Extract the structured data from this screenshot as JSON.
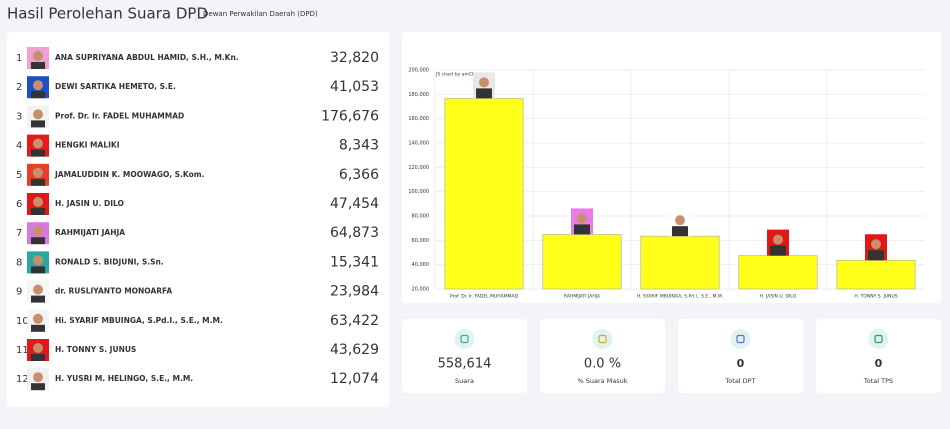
{
  "header": {
    "title": "Hasil Perolehan Suara DPD",
    "subtitle": "Dewan Perwakilan Daerah (DPD)"
  },
  "candidates": [
    {
      "no": "1",
      "name": "ANA SUPRIYANA ABDUL HAMID, S.H., M.Kn.",
      "votes": "32,820"
    },
    {
      "no": "2",
      "name": "DEWI SARTIKA HEMETO, S.E.",
      "votes": "41,053"
    },
    {
      "no": "3",
      "name": "Prof. Dr. Ir. FADEL MUHAMMAD",
      "votes": "176,676"
    },
    {
      "no": "4",
      "name": "HENGKI MALIKI",
      "votes": "8,343"
    },
    {
      "no": "5",
      "name": "JAMALUDDIN K. MOOWAGO, S.Kom.",
      "votes": "6,366"
    },
    {
      "no": "6",
      "name": "H. JASIN U. DILO",
      "votes": "47,454"
    },
    {
      "no": "7",
      "name": "RAHMIJATI JAHJA",
      "votes": "64,873"
    },
    {
      "no": "8",
      "name": "RONALD S. BIDJUNI, S.Sn.",
      "votes": "15,341"
    },
    {
      "no": "9",
      "name": "dr. RUSLIYANTO MONOARFA",
      "votes": "23,984"
    },
    {
      "no": "10",
      "name": "Hi. SYARIF MBUINGA, S.Pd.I., S.E., M.M.",
      "votes": "63,422"
    },
    {
      "no": "11",
      "name": "H. TONNY S. JUNUS",
      "votes": "43,629"
    },
    {
      "no": "12",
      "name": "H. YUSRI M. HELINGO, S.E., M.M.",
      "votes": "12,074"
    }
  ],
  "chart_data": {
    "type": "bar",
    "watermark": "JS chart by amCharts",
    "categories": [
      "Prof. Dr. Ir. FADEL MUHAMMAD",
      "RAHMIJATI JAHJA",
      "H. SYARIF MBUINGA, S.Pd.I., S.E., M.M.",
      "H. JASIN U. DILO",
      "H. TONNY S. JUNUS"
    ],
    "values": [
      176676,
      64873,
      63422,
      47454,
      43629
    ],
    "color": "#ffff1a",
    "ylim": [
      20000,
      200000
    ],
    "yticks": [
      {
        "value": 20000,
        "label": "20,000"
      },
      {
        "value": 40000,
        "label": "40,000"
      },
      {
        "value": 60000,
        "label": "60,000"
      },
      {
        "value": 80000,
        "label": "80,000"
      },
      {
        "value": 100000,
        "label": "100,000"
      },
      {
        "value": 120000,
        "label": "120,000"
      },
      {
        "value": 140000,
        "label": "140,000"
      },
      {
        "value": 160000,
        "label": "160,000"
      },
      {
        "value": 180000,
        "label": "180,000"
      },
      {
        "value": 200000,
        "label": "200,000"
      }
    ],
    "grid": true
  },
  "stats": [
    {
      "value": "558,614",
      "label": "Suara"
    },
    {
      "value": "0.0 %",
      "label": "% Suara Masuk"
    },
    {
      "value": "0",
      "label": "Total DPT"
    },
    {
      "value": "0",
      "label": "Total TPS"
    }
  ]
}
